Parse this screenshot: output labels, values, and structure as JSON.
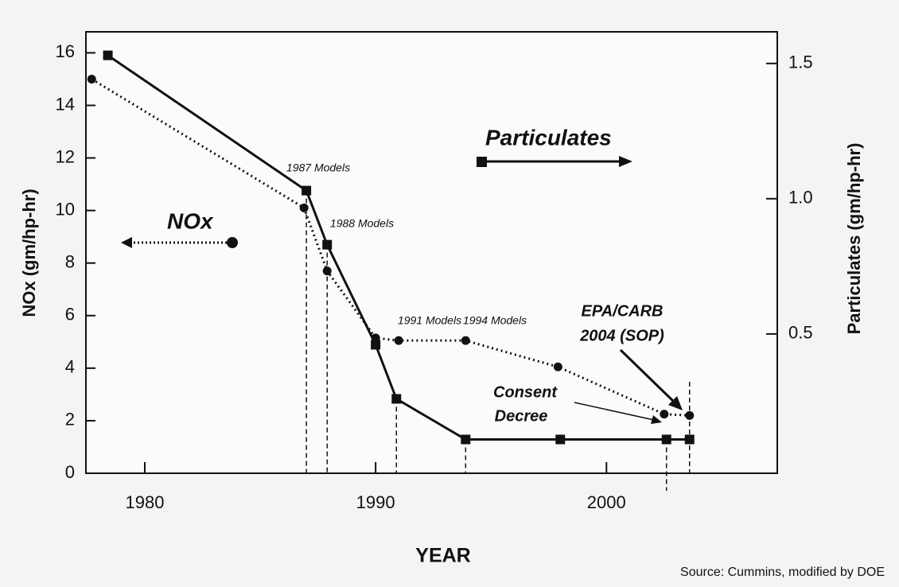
{
  "chart_data": {
    "type": "line",
    "xlabel": "YEAR",
    "ylabel": "NOx (gm/hp-hr)",
    "y2label": "Particulates (gm/hp-hr)",
    "xlim": [
      1977.45,
      2007.4
    ],
    "xticks": [
      1980,
      1990,
      2000
    ],
    "ylim": [
      0,
      16.8
    ],
    "yticks": [
      0,
      2,
      4,
      6,
      8,
      10,
      12,
      14,
      16
    ],
    "y2lim": [
      -0.015,
      1.617
    ],
    "y2ticks": [
      0.5,
      {
        "value": 1,
        "label": "1.0"
      },
      1.5
    ],
    "series": [
      {
        "name": "NOx",
        "color": "#111111",
        "style": "dotted",
        "marker": "circle",
        "x": [
          1977.7,
          1986.9,
          1987.9,
          1990,
          1991,
          1993.9,
          1997.9,
          2002.5,
          2003.6
        ],
        "values": [
          15,
          10.1,
          7.7,
          5.15,
          5.05,
          5.05,
          4.05,
          2.25,
          2.2
        ]
      },
      {
        "name": "Particulates",
        "color": "#111111",
        "style": "solid",
        "marker": "square",
        "axis": "y2",
        "x": [
          1978.4,
          1987,
          1987.9,
          1990,
          1990.9,
          1993.9,
          1998,
          2002.6,
          2003.6
        ],
        "values": [
          1.53,
          1.03,
          0.83,
          0.46,
          0.26,
          0.11,
          0.11,
          0.11,
          0.11
        ]
      }
    ],
    "annotations": [
      "1987 Models",
      "1988 Models",
      "1991 Models",
      "1994 Models",
      "EPA/CARB",
      "2004 (SOP)",
      "Consent",
      "Decree"
    ],
    "source": "Source: Cummins, modified by DOE"
  }
}
